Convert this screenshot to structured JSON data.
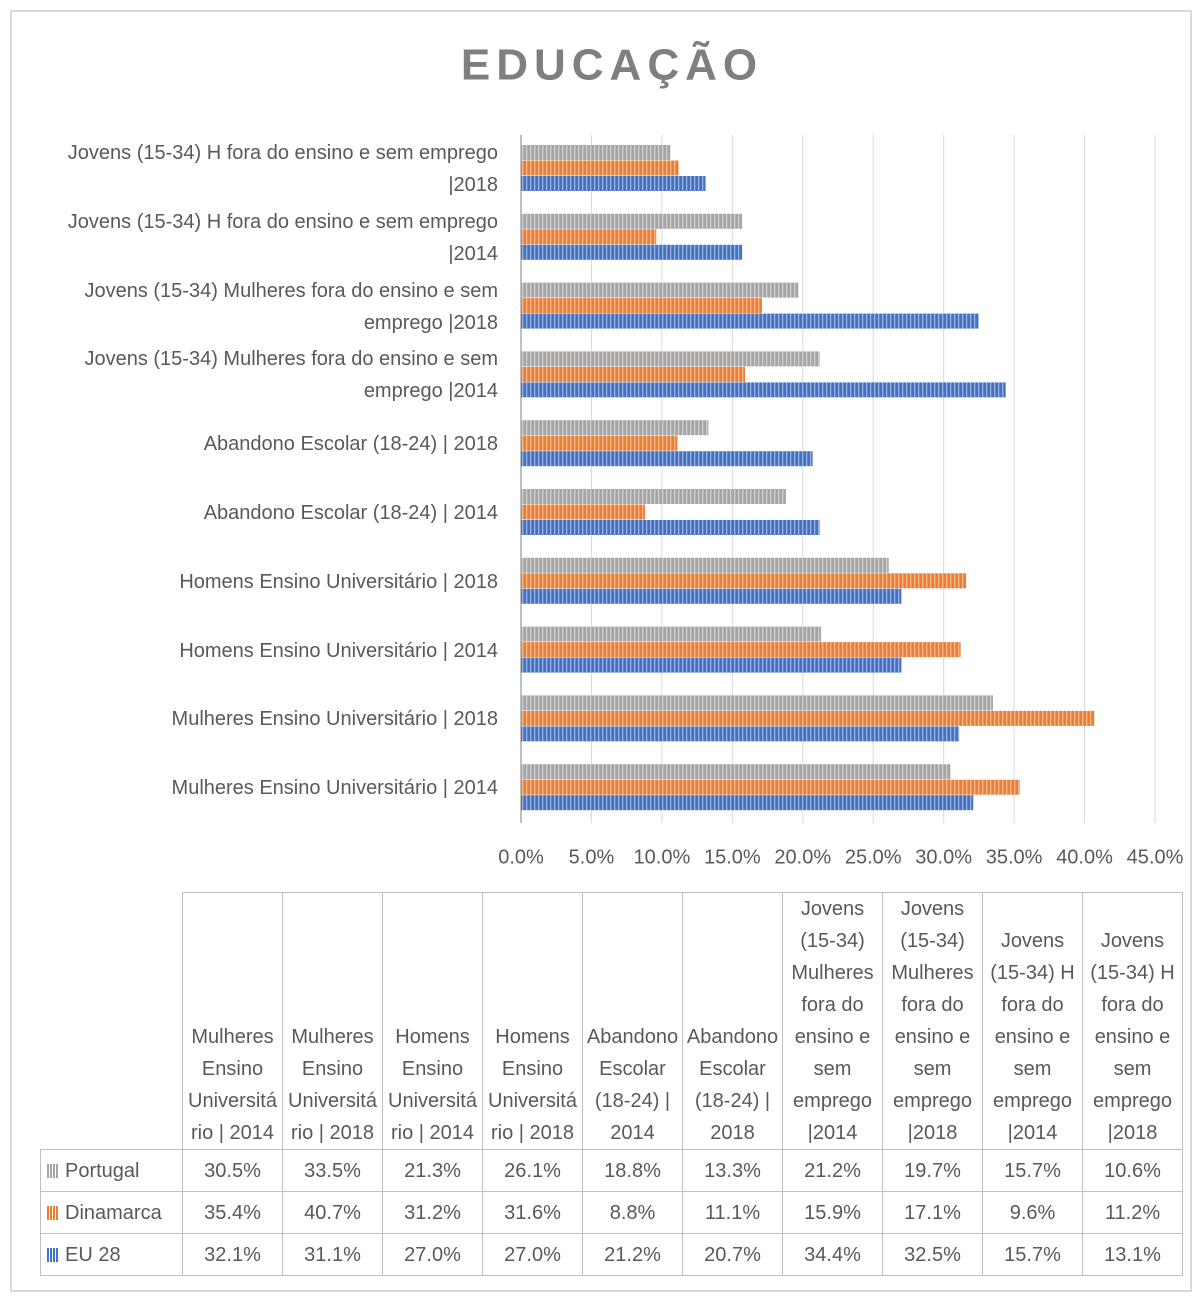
{
  "chart_data": {
    "type": "bar",
    "orientation": "horizontal",
    "title": "EDUCAÇÃO",
    "categories": [
      "Mulheres Ensino Universitário | 2014",
      "Mulheres Ensino Universitário | 2018",
      "Homens Ensino Universitário | 2014",
      "Homens Ensino Universitário | 2018",
      "Abandono Escolar (18-24) | 2014",
      "Abandono Escolar (18-24) | 2018",
      "Jovens (15-34) Mulheres fora do ensino e sem emprego |2014",
      "Jovens (15-34) Mulheres fora do ensino e sem emprego |2018",
      "Jovens (15-34) H fora do ensino e sem emprego |2014",
      "Jovens (15-34) H fora do ensino e sem emprego |2018"
    ],
    "series": [
      {
        "name": "Portugal",
        "color": "#a5a5a5",
        "values": [
          30.5,
          33.5,
          21.3,
          26.1,
          18.8,
          13.3,
          21.2,
          19.7,
          15.7,
          10.6
        ],
        "value_labels": [
          "30.5%",
          "33.5%",
          "21.3%",
          "26.1%",
          "18.8%",
          "13.3%",
          "21.2%",
          "19.7%",
          "15.7%",
          "10.6%"
        ]
      },
      {
        "name": "Dinamarca",
        "color": "#ed7d31",
        "values": [
          35.4,
          40.7,
          31.2,
          31.6,
          8.8,
          11.1,
          15.9,
          17.1,
          9.6,
          11.2
        ],
        "value_labels": [
          "35.4%",
          "40.7%",
          "31.2%",
          "31.6%",
          "8.8%",
          "11.1%",
          "15.9%",
          "17.1%",
          "9.6%",
          "11.2%"
        ]
      },
      {
        "name": "EU 28",
        "color": "#4472c4",
        "values": [
          32.1,
          31.1,
          27.0,
          27.0,
          21.2,
          20.7,
          34.4,
          32.5,
          15.7,
          13.1
        ],
        "value_labels": [
          "32.1%",
          "31.1%",
          "27.0%",
          "27.0%",
          "21.2%",
          "20.7%",
          "34.4%",
          "32.5%",
          "15.7%",
          "13.1%"
        ]
      }
    ],
    "xlim": [
      0,
      45
    ],
    "xticks": [
      {
        "value": 0,
        "label": "0.0%"
      },
      {
        "value": 5,
        "label": "5.0%"
      },
      {
        "value": 10,
        "label": "10.0%"
      },
      {
        "value": 15,
        "label": "15.0%"
      },
      {
        "value": 20,
        "label": "20.0%"
      },
      {
        "value": 25,
        "label": "25.0%"
      },
      {
        "value": 30,
        "label": "30.0%"
      },
      {
        "value": 35,
        "label": "35.0%"
      },
      {
        "value": 40,
        "label": "40.0%"
      },
      {
        "value": 45,
        "label": "45.0%"
      }
    ],
    "grid": true,
    "data_table": true
  }
}
